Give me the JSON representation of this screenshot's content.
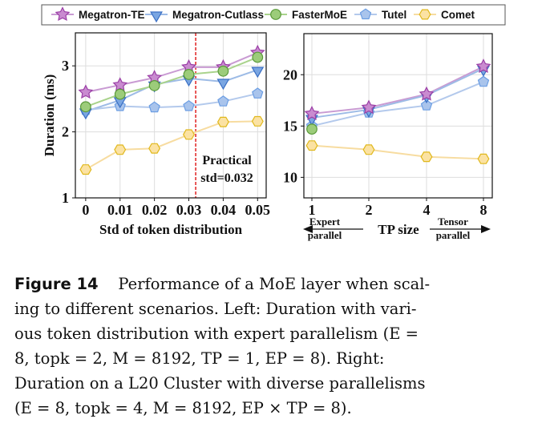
{
  "chart_data": [
    {
      "type": "line",
      "panel": "left",
      "xlabel": "Std of token distribution",
      "ylabel": "Duration (ms)",
      "x": [
        0,
        0.01,
        0.02,
        0.03,
        0.04,
        0.05
      ],
      "x_tick_labels": [
        "0",
        "0.01",
        "0.02",
        "0.03",
        "0.04",
        "0.05"
      ],
      "xlim": [
        -0.003,
        0.0525
      ],
      "ylim": [
        1,
        3.5
      ],
      "yticks": [
        1,
        2,
        3
      ],
      "grid": true,
      "annotation": {
        "line1": "Practical",
        "line2": "std=0.032",
        "x": 0.032
      },
      "series": [
        {
          "name": "Megatron-TE",
          "values": [
            2.6,
            2.71,
            2.82,
            2.98,
            2.98,
            3.2
          ]
        },
        {
          "name": "Megatron-Cutlass",
          "values": [
            2.31,
            2.48,
            2.72,
            2.81,
            2.76,
            2.94
          ]
        },
        {
          "name": "FasterMoE",
          "values": [
            2.38,
            2.57,
            2.7,
            2.87,
            2.92,
            3.13
          ]
        },
        {
          "name": "Tutel",
          "values": [
            2.33,
            2.39,
            2.37,
            2.39,
            2.46,
            2.58
          ]
        },
        {
          "name": "Comet",
          "values": [
            1.43,
            1.73,
            1.75,
            1.96,
            2.15,
            2.16
          ]
        }
      ]
    },
    {
      "type": "line",
      "panel": "right",
      "xlabel": "TP size",
      "x_left_note": [
        "Expert",
        "parallel"
      ],
      "x_right_note": [
        "Tensor",
        "parallel"
      ],
      "categories": [
        "1",
        "2",
        "4",
        "8"
      ],
      "ylim": [
        8,
        24
      ],
      "yticks": [
        10,
        15,
        20
      ],
      "grid": true,
      "series": [
        {
          "name": "Megatron-TE",
          "values": [
            16.2,
            16.8,
            18.1,
            20.8
          ]
        },
        {
          "name": "Megatron-Cutlass",
          "values": [
            15.8,
            16.6,
            18.0,
            20.6
          ]
        },
        {
          "name": "FasterMoE",
          "values": [
            14.7,
            null,
            null,
            null
          ]
        },
        {
          "name": "Tutel",
          "values": [
            15.0,
            16.3,
            17.0,
            19.3
          ]
        },
        {
          "name": "Comet",
          "values": [
            13.1,
            12.7,
            12.0,
            11.8
          ]
        }
      ]
    }
  ],
  "legend": [
    {
      "name": "Megatron-TE",
      "marker": "star",
      "line": "#c99bd3",
      "fill": "#c98bd0",
      "stroke": "#9b3fa6"
    },
    {
      "name": "Megatron-Cutlass",
      "marker": "tri-down",
      "line": "#9dbbe6",
      "fill": "#7aa6e2",
      "stroke": "#3a6fc4"
    },
    {
      "name": "FasterMoE",
      "marker": "circle",
      "line": "#a9d38c",
      "fill": "#9ccc7a",
      "stroke": "#5a9a3a"
    },
    {
      "name": "Tutel",
      "marker": "pentagon",
      "line": "#b3c9ec",
      "fill": "#a9c4ec",
      "stroke": "#6c9ee3"
    },
    {
      "name": "Comet",
      "marker": "hexagon",
      "line": "#f7dca0",
      "fill": "#fbe2a3",
      "stroke": "#e0b81c"
    }
  ],
  "caption": {
    "label": "Figure 14",
    "lines": [
      "Performance of a MoE layer when scal-",
      "ing to different scenarios.  Left: Duration with vari-",
      "ous token distribution with expert parallelism (E =",
      "8, topk = 2, M = 8192, TP = 1, EP = 8).  Right:",
      "Duration on a L20 Cluster with diverse parallelisms",
      "(E = 8, topk = 4, M = 8192, EP × TP = 8)."
    ]
  }
}
